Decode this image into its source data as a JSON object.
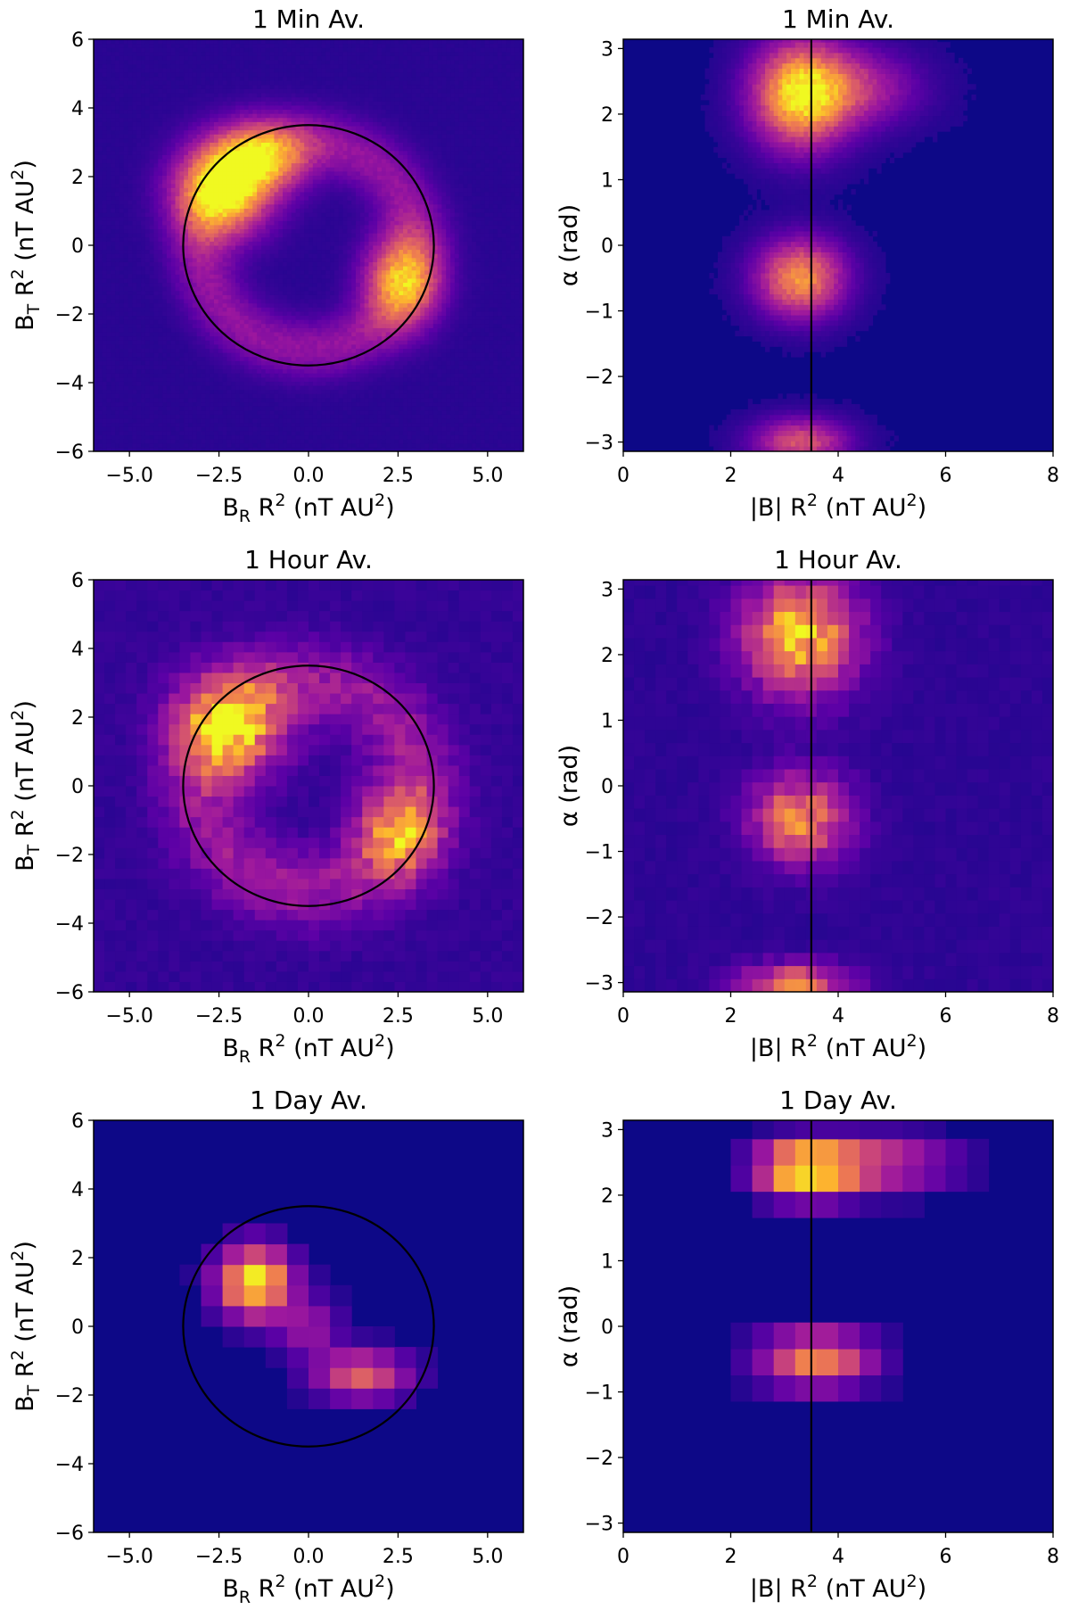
{
  "colors": {
    "colormap": [
      "#0d0887",
      "#5c01a6",
      "#9c179e",
      "#cc4778",
      "#ed7953",
      "#fdb42f",
      "#f0f921"
    ],
    "overlay": "#000000"
  },
  "chart_data": [
    {
      "type": "heatmap",
      "id": "p1",
      "title": "1 Min Av.",
      "xlim": [
        -6,
        6
      ],
      "ylim": [
        -6,
        6
      ],
      "bin_size": 0.12,
      "xticks": [
        "−5.0",
        "−2.5",
        "0.0",
        "2.5",
        "5.0"
      ],
      "xtick_values": [
        -5,
        -2.5,
        0,
        2.5,
        5
      ],
      "yticks": [
        "−6",
        "−4",
        "−2",
        "0",
        "2",
        "4",
        "6"
      ],
      "ytick_values": [
        -6,
        -4,
        -2,
        0,
        2,
        4,
        6
      ],
      "xlabel": {
        "base": "B",
        "sub": "R",
        "mid": " R",
        "sup": "2",
        "tail": " (nT AU",
        "sup2": "2",
        "end": ")"
      },
      "ylabel": {
        "base": "B",
        "sub": "T",
        "mid": " R",
        "sup": "2",
        "tail": " (nT AU",
        "sup2": "2",
        "end": ")"
      },
      "overlay": {
        "kind": "circle",
        "center": [
          0,
          0
        ],
        "radius": 3.5
      },
      "blobs": [
        {
          "x": -2.4,
          "y": 1.6,
          "sx": 0.9,
          "sy": 0.9,
          "a": 0.85
        },
        {
          "x": -1.3,
          "y": 2.6,
          "sx": 0.9,
          "sy": 0.7,
          "a": 0.6
        },
        {
          "x": 2.6,
          "y": -1.0,
          "sx": 0.7,
          "sy": 0.9,
          "a": 0.65
        }
      ],
      "ring": {
        "r": 3.0,
        "w": 0.6,
        "a": 0.25
      },
      "base_level": 0.06,
      "noise": 0.18
    },
    {
      "type": "heatmap",
      "id": "p2",
      "title": "1 Min Av.",
      "xlim": [
        0,
        8
      ],
      "ylim": [
        -3.1416,
        3.1416
      ],
      "bin_size": 0.08,
      "xticks": [
        "0",
        "2",
        "4",
        "6",
        "8"
      ],
      "xtick_values": [
        0,
        2,
        4,
        6,
        8
      ],
      "yticks": [
        "−3",
        "−2",
        "−1",
        "0",
        "1",
        "2",
        "3"
      ],
      "ytick_values": [
        -3,
        -2,
        -1,
        0,
        1,
        2,
        3
      ],
      "xlabel": {
        "base": "|B|",
        "sub": "",
        "mid": " R",
        "sup": "2",
        "tail": " (nT AU",
        "sup2": "2",
        "end": ")"
      },
      "ylabel_text": "α  (rad)",
      "overlay": {
        "kind": "vline",
        "x": 3.5
      },
      "blobs": [
        {
          "x": 3.3,
          "y": 2.3,
          "sx": 0.6,
          "sy": 0.55,
          "a": 0.85
        },
        {
          "x": 4.3,
          "y": 2.4,
          "sx": 0.8,
          "sy": 0.4,
          "a": 0.35
        },
        {
          "x": 3.3,
          "y": -0.5,
          "sx": 0.55,
          "sy": 0.4,
          "a": 0.7
        },
        {
          "x": 3.3,
          "y": -3.0,
          "sx": 0.6,
          "sy": 0.25,
          "a": 0.5
        }
      ],
      "base_level": 0.04,
      "noise": 0.18
    },
    {
      "type": "heatmap",
      "id": "p3",
      "title": "1 Hour Av.",
      "xlim": [
        -6,
        6
      ],
      "ylim": [
        -6,
        6
      ],
      "bin_size": 0.3,
      "xticks": [
        "−5.0",
        "−2.5",
        "0.0",
        "2.5",
        "5.0"
      ],
      "xtick_values": [
        -5,
        -2.5,
        0,
        2.5,
        5
      ],
      "yticks": [
        "−6",
        "−4",
        "−2",
        "0",
        "2",
        "4",
        "6"
      ],
      "ytick_values": [
        -6,
        -4,
        -2,
        0,
        2,
        4,
        6
      ],
      "xlabel": {
        "base": "B",
        "sub": "R",
        "mid": " R",
        "sup": "2",
        "tail": " (nT AU",
        "sup2": "2",
        "end": ")"
      },
      "ylabel": {
        "base": "B",
        "sub": "T",
        "mid": " R",
        "sup": "2",
        "tail": " (nT AU",
        "sup2": "2",
        "end": ")"
      },
      "overlay": {
        "kind": "circle",
        "center": [
          0,
          0
        ],
        "radius": 3.5
      },
      "blobs": [
        {
          "x": -2.2,
          "y": 1.8,
          "sx": 1.0,
          "sy": 1.0,
          "a": 0.75
        },
        {
          "x": 2.5,
          "y": -1.3,
          "sx": 0.8,
          "sy": 0.9,
          "a": 0.55
        }
      ],
      "ring": {
        "r": 3.0,
        "w": 0.8,
        "a": 0.25
      },
      "base_level": 0.08,
      "noise": 0.45
    },
    {
      "type": "heatmap",
      "id": "p4",
      "title": "1 Hour Av.",
      "xlim": [
        0,
        8
      ],
      "ylim": [
        -3.1416,
        3.1416
      ],
      "bin_size": 0.2,
      "xticks": [
        "0",
        "2",
        "4",
        "6",
        "8"
      ],
      "xtick_values": [
        0,
        2,
        4,
        6,
        8
      ],
      "yticks": [
        "−3",
        "−2",
        "−1",
        "0",
        "1",
        "2",
        "3"
      ],
      "ytick_values": [
        -3,
        -2,
        -1,
        0,
        1,
        2,
        3
      ],
      "xlabel": {
        "base": "|B|",
        "sub": "",
        "mid": " R",
        "sup": "2",
        "tail": " (nT AU",
        "sup2": "2",
        "end": ")"
      },
      "ylabel_text": "α  (rad)",
      "overlay": {
        "kind": "vline",
        "x": 3.5
      },
      "blobs": [
        {
          "x": 3.3,
          "y": 2.3,
          "sx": 0.7,
          "sy": 0.6,
          "a": 0.8
        },
        {
          "x": 3.3,
          "y": -0.5,
          "sx": 0.6,
          "sy": 0.45,
          "a": 0.65
        },
        {
          "x": 3.2,
          "y": -3.0,
          "sx": 0.7,
          "sy": 0.2,
          "a": 0.55
        }
      ],
      "base_level": 0.07,
      "noise": 0.45
    },
    {
      "type": "heatmap",
      "id": "p5",
      "title": "1 Day Av.",
      "xlim": [
        -6,
        6
      ],
      "ylim": [
        -6,
        6
      ],
      "bin_size": 0.6,
      "xticks": [
        "−5.0",
        "−2.5",
        "0.0",
        "2.5",
        "5.0"
      ],
      "xtick_values": [
        -5,
        -2.5,
        0,
        2.5,
        5
      ],
      "yticks": [
        "−6",
        "−4",
        "−2",
        "0",
        "2",
        "4",
        "6"
      ],
      "ytick_values": [
        -6,
        -4,
        -2,
        0,
        2,
        4,
        6
      ],
      "xlabel": {
        "base": "B",
        "sub": "R",
        "mid": " R",
        "sup": "2",
        "tail": " (nT AU",
        "sup2": "2",
        "end": ")"
      },
      "ylabel": {
        "base": "B",
        "sub": "T",
        "mid": " R",
        "sup": "2",
        "tail": " (nT AU",
        "sup2": "2",
        "end": ")"
      },
      "overlay": {
        "kind": "circle",
        "center": [
          0,
          0
        ],
        "radius": 3.5
      },
      "blobs": [
        {
          "x": -1.5,
          "y": 1.3,
          "sx": 0.7,
          "sy": 0.7,
          "a": 0.95
        },
        {
          "x": 1.5,
          "y": -1.4,
          "sx": 0.9,
          "sy": 0.5,
          "a": 0.55
        },
        {
          "x": 0.0,
          "y": 0.0,
          "sx": 0.6,
          "sy": 0.6,
          "a": 0.3
        }
      ],
      "base_level": 0.02,
      "noise": 0.12
    },
    {
      "type": "heatmap",
      "id": "p6",
      "title": "1 Day Av.",
      "xlim": [
        0,
        8
      ],
      "ylim": [
        -3.1416,
        3.1416
      ],
      "bin_size": 0.4,
      "xticks": [
        "0",
        "2",
        "4",
        "6",
        "8"
      ],
      "xtick_values": [
        0,
        2,
        4,
        6,
        8
      ],
      "yticks": [
        "−3",
        "−2",
        "−1",
        "0",
        "1",
        "2",
        "3"
      ],
      "ytick_values": [
        -3,
        -2,
        -1,
        0,
        1,
        2,
        3
      ],
      "xlabel": {
        "base": "|B|",
        "sub": "",
        "mid": " R",
        "sup": "2",
        "tail": " (nT AU",
        "sup2": "2",
        "end": ")"
      },
      "ylabel_text": "α  (rad)",
      "overlay": {
        "kind": "vline",
        "x": 3.5
      },
      "blobs": [
        {
          "x": 3.4,
          "y": 2.4,
          "sx": 0.6,
          "sy": 0.3,
          "a": 0.95
        },
        {
          "x": 4.8,
          "y": 2.5,
          "sx": 0.9,
          "sy": 0.3,
          "a": 0.45
        },
        {
          "x": 3.6,
          "y": -0.5,
          "sx": 0.7,
          "sy": 0.3,
          "a": 0.7
        }
      ],
      "base_level": 0.02,
      "noise": 0.12
    }
  ]
}
